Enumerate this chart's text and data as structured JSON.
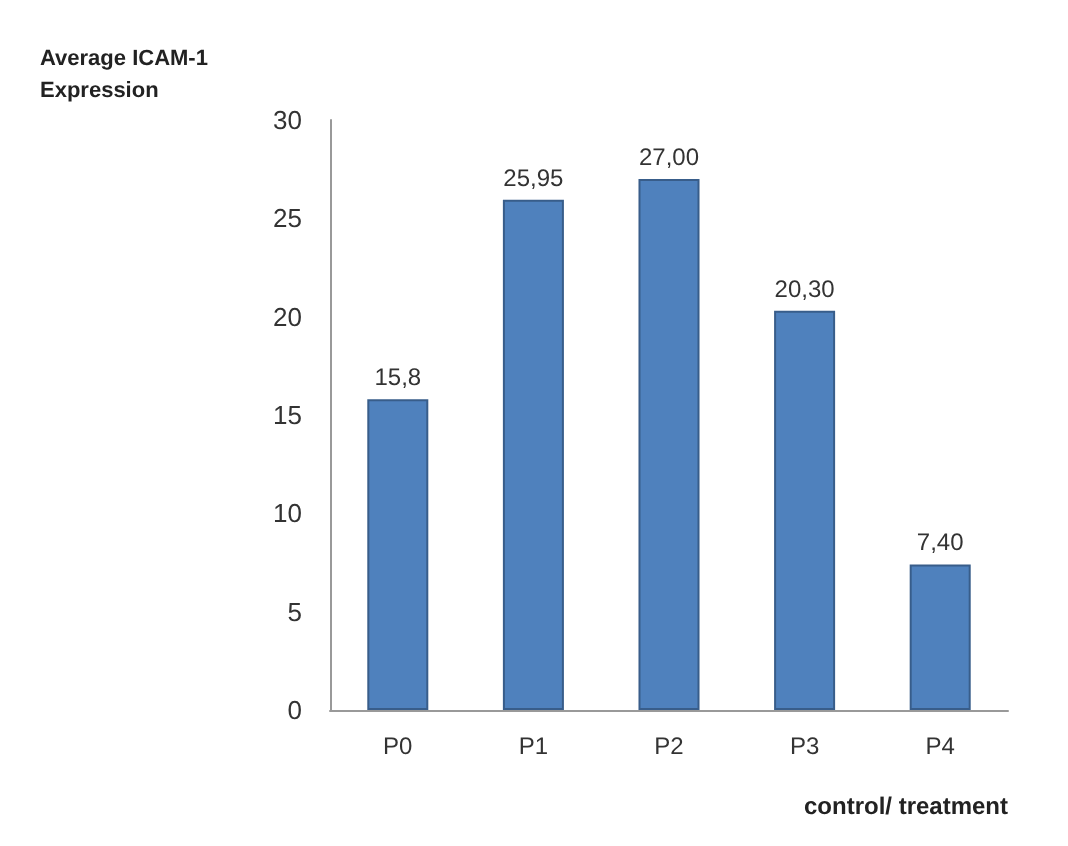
{
  "chart_data": {
    "type": "bar",
    "xlabel": "control/ treatment",
    "ylabel": "Average ICAM-1 Expression",
    "categories": [
      "P0",
      "P1",
      "P2",
      "P3",
      "P4"
    ],
    "values": [
      15.8,
      25.95,
      27.0,
      20.3,
      7.4
    ],
    "value_labels": [
      "15,8",
      "25,95",
      "27,00",
      "20,30",
      "7,40"
    ],
    "color": "#4f81bd",
    "ylim": [
      0,
      30
    ],
    "yticks": [
      0,
      5,
      10,
      15,
      20,
      25,
      30
    ],
    "grid": false
  }
}
